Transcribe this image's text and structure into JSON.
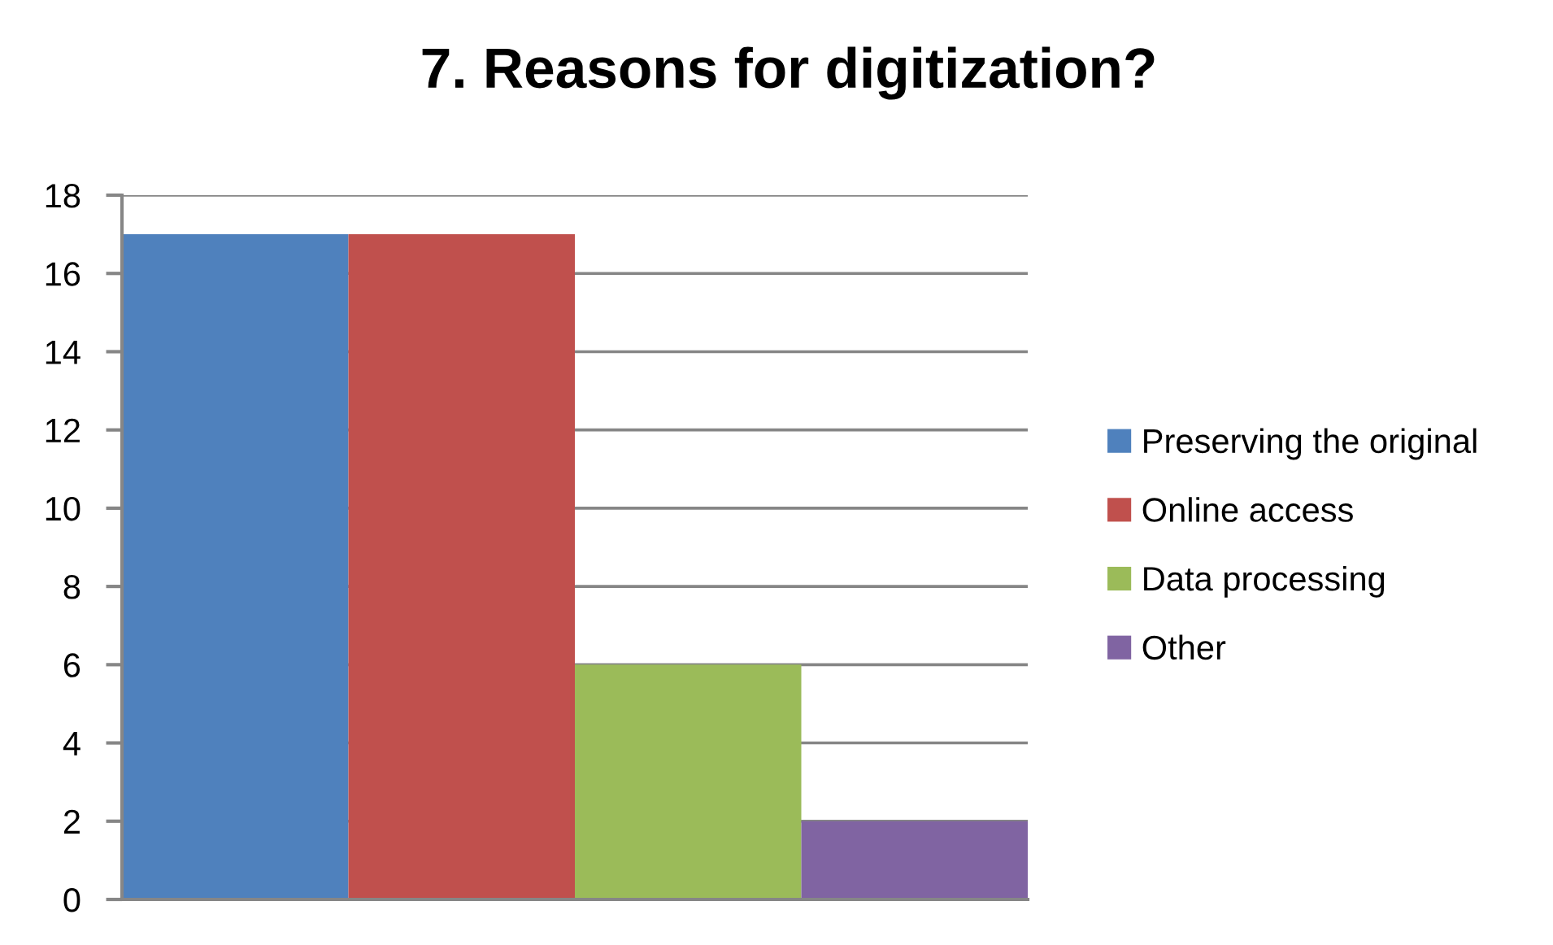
{
  "chart_data": {
    "type": "bar",
    "title": "7. Reasons for digitization?",
    "categories": [
      null
    ],
    "series": [
      {
        "name": "Preserving the original",
        "color": "#4f81bd",
        "values": [
          17
        ]
      },
      {
        "name": "Online access",
        "color": "#c0504d",
        "values": [
          17
        ]
      },
      {
        "name": "Data processing",
        "color": "#9bbb59",
        "values": [
          6
        ]
      },
      {
        "name": "Other",
        "color": "#8064a2",
        "values": [
          2
        ]
      }
    ],
    "ylim": [
      0,
      18
    ],
    "yticks": [
      0,
      2,
      4,
      6,
      8,
      10,
      12,
      14,
      16,
      18
    ],
    "grid": "y",
    "legend": "right"
  }
}
